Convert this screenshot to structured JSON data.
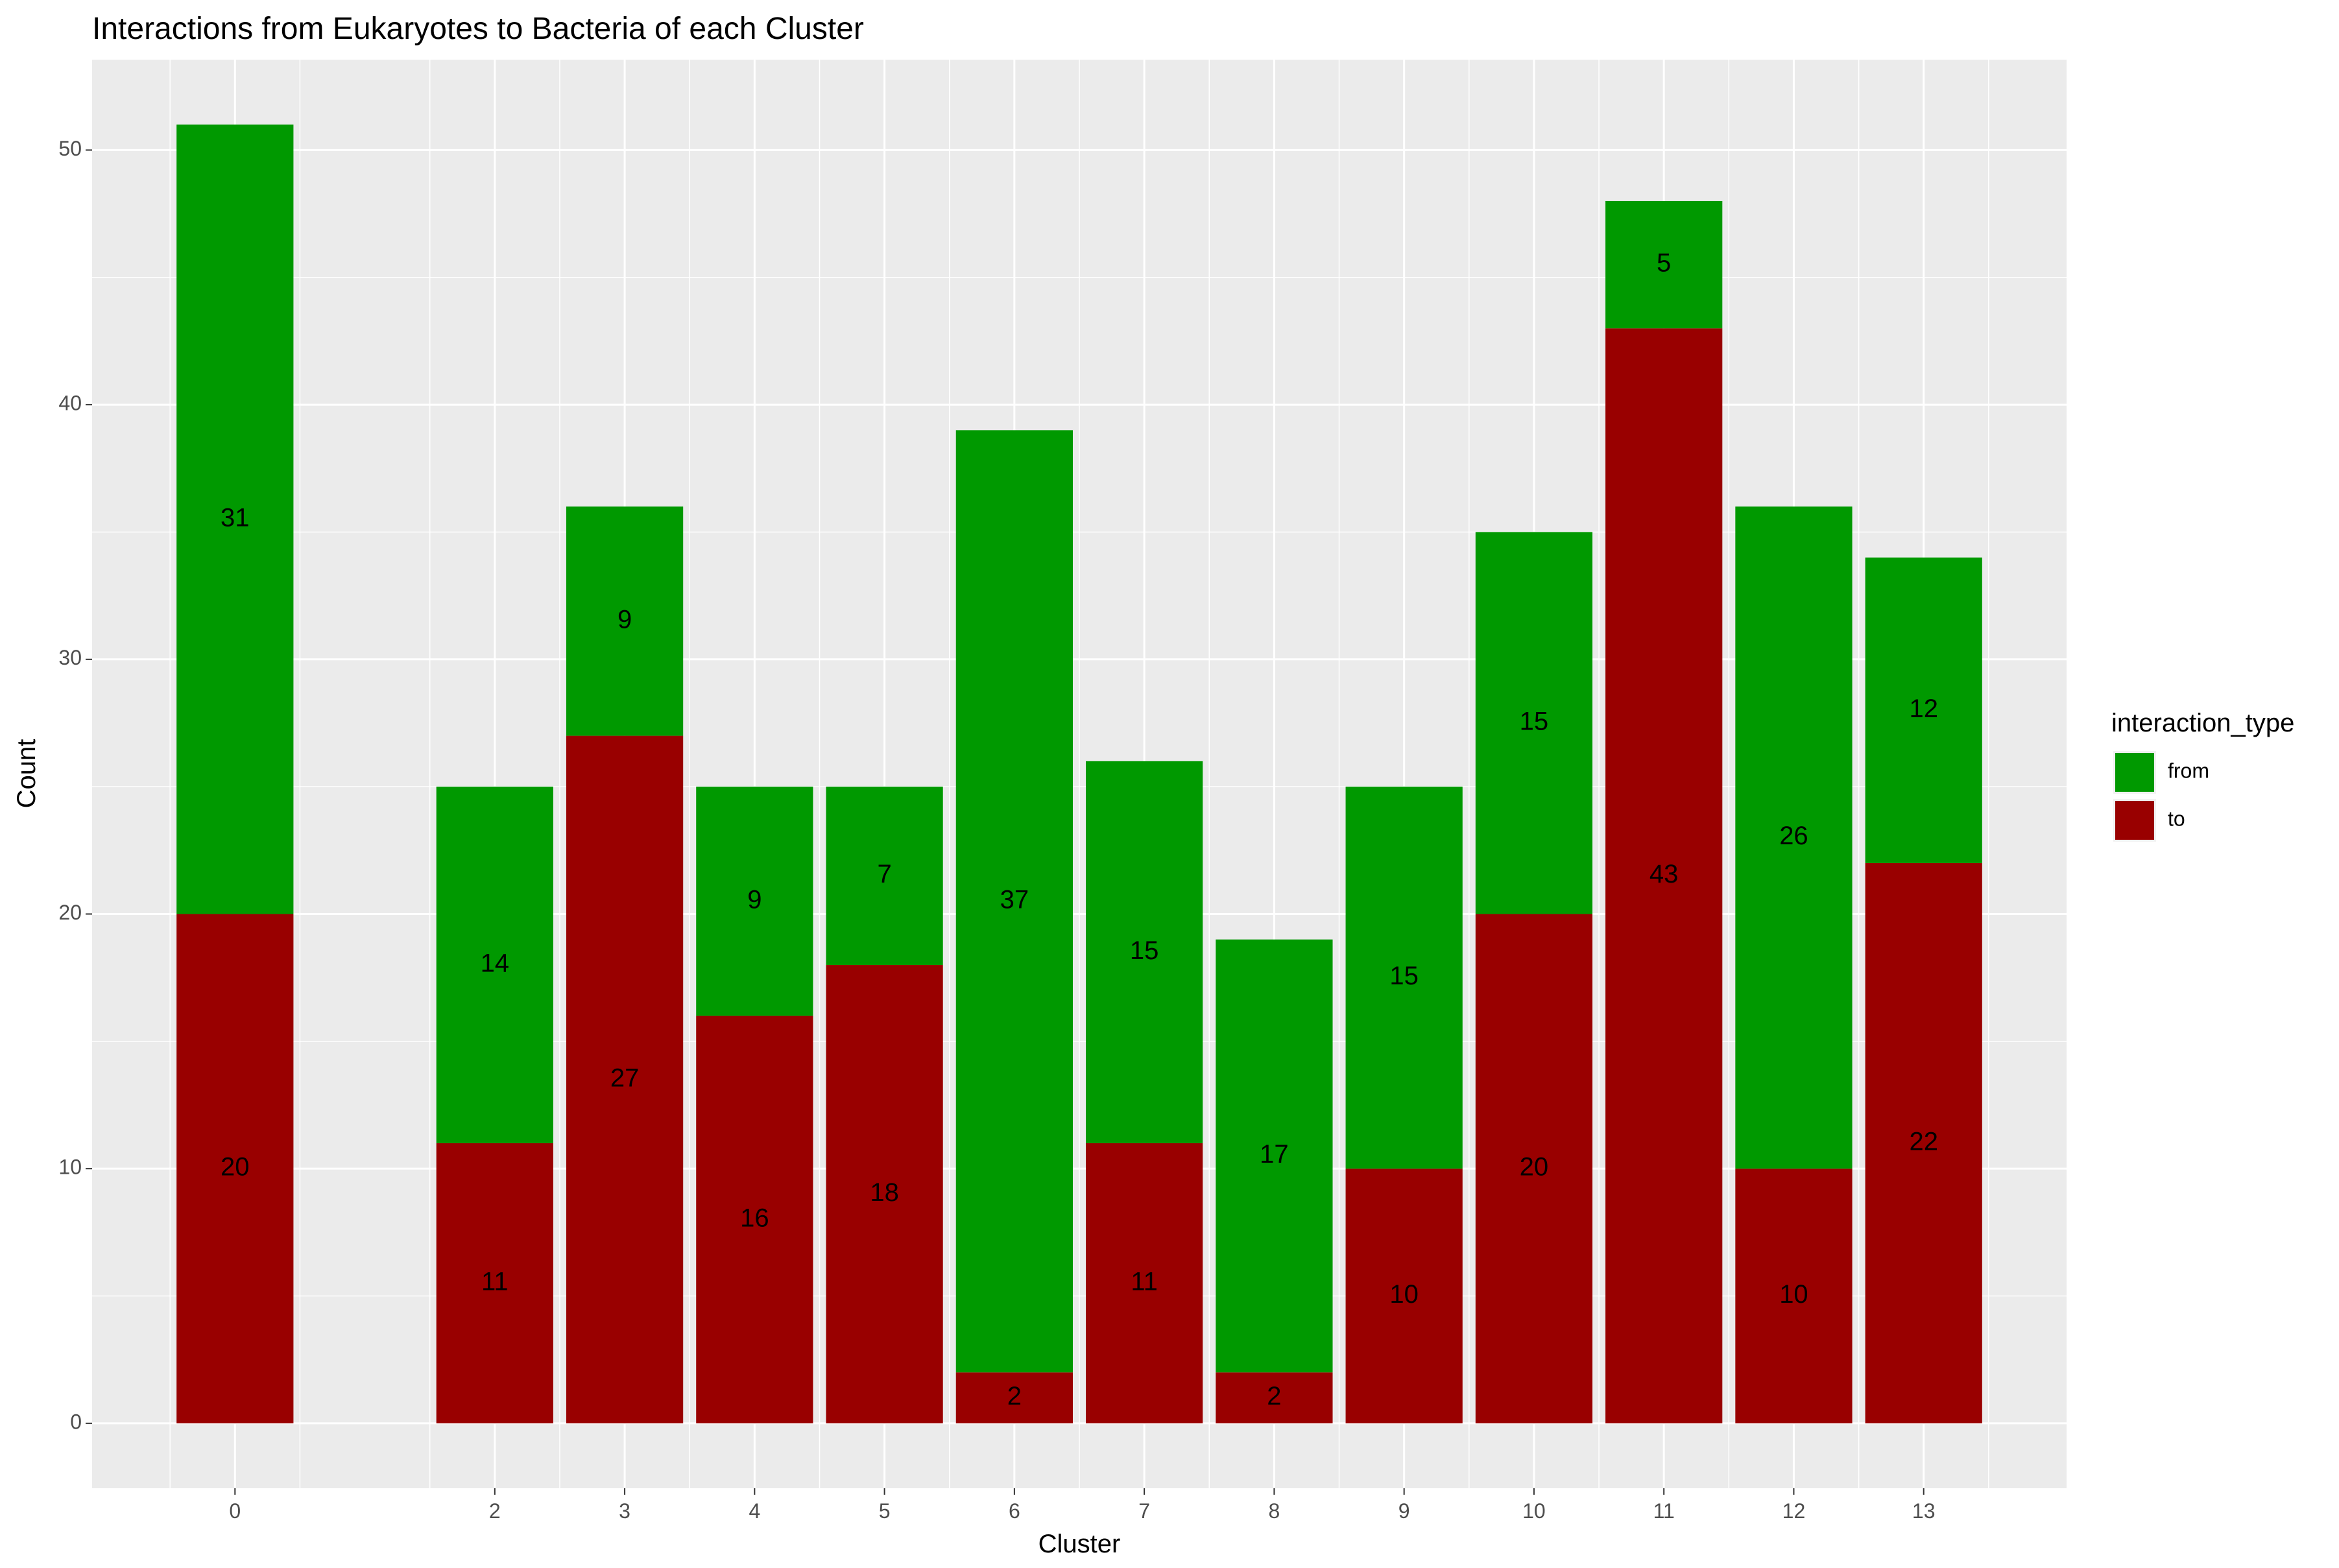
{
  "chart_data": {
    "type": "bar",
    "stacked": true,
    "title": "Interactions from Eukaryotes to Bacteria of each Cluster",
    "xlabel": "Cluster",
    "ylabel": "Count",
    "xlim": [
      -1.1,
      14.1
    ],
    "ylim": [
      -2.55,
      53.55
    ],
    "x_ticks": [
      0,
      2,
      3,
      4,
      5,
      6,
      7,
      8,
      9,
      10,
      11,
      12,
      13
    ],
    "y_ticks": [
      0,
      10,
      20,
      30,
      40,
      50
    ],
    "grid": true,
    "legend": {
      "title": "interaction_type",
      "position": "right"
    },
    "categories": [
      0,
      2,
      3,
      4,
      5,
      6,
      7,
      8,
      9,
      10,
      11,
      12,
      13
    ],
    "series": [
      {
        "name": "from",
        "color": "#009900",
        "values": [
          31,
          14,
          9,
          9,
          7,
          37,
          15,
          17,
          15,
          15,
          5,
          26,
          12
        ]
      },
      {
        "name": "to",
        "color": "#990000",
        "values": [
          20,
          11,
          27,
          16,
          18,
          2,
          11,
          2,
          10,
          20,
          43,
          10,
          22
        ]
      }
    ],
    "colors": {
      "panel": "#EBEBEB",
      "grid": "#FFFFFF"
    }
  }
}
